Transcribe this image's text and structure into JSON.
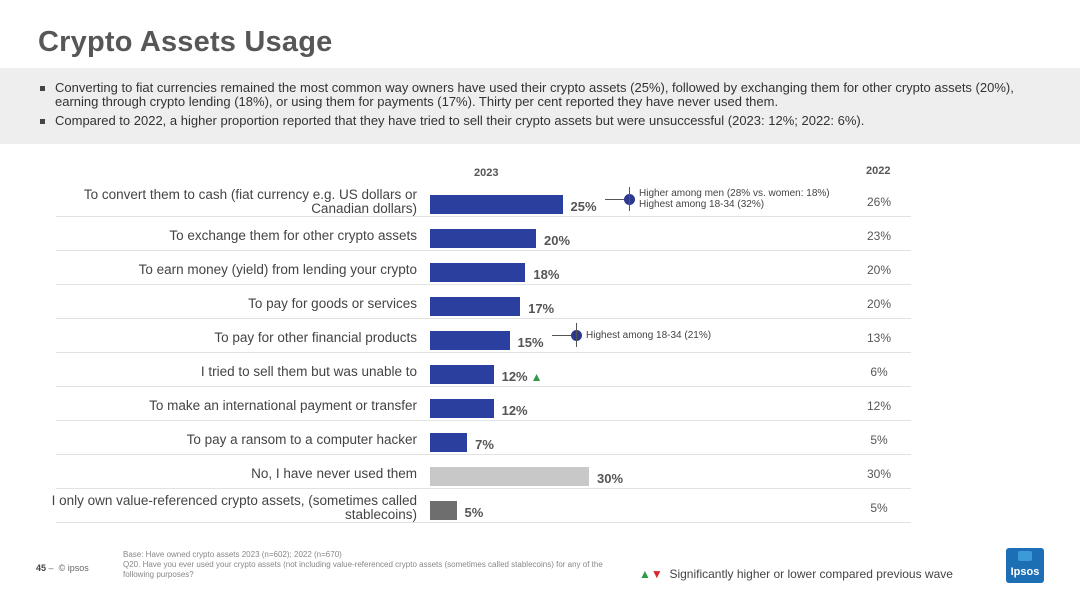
{
  "title": "Crypto Assets Usage",
  "summary": [
    "Converting to fiat currencies remained the most common way owners have used their crypto assets (25%), followed by exchanging them for other crypto assets (20%), earning through crypto lending (18%), or using them for payments (17%). Thirty per cent reported they have never used them.",
    "Compared to 2022, a higher proportion reported that they have tried to sell their crypto assets but were unsuccessful (2023: 12%; 2022: 6%)."
  ],
  "chart_data": {
    "type": "bar",
    "orientation": "horizontal",
    "column_headers": {
      "current": "2023",
      "previous": "2022"
    },
    "categories": [
      "To convert them to cash (fiat currency e.g. US dollars or Canadian dollars)",
      "To exchange them for other crypto assets",
      "To earn money (yield) from lending your crypto",
      "To pay for goods or services",
      "To pay for other financial products",
      "I tried to sell them but was unable to",
      "To make an international payment or transfer",
      "To pay a ransom to a computer hacker",
      "No, I have never used them",
      "I only own value-referenced crypto assets, (sometimes called stablecoins)"
    ],
    "series": [
      {
        "name": "2023",
        "values": [
          25,
          20,
          18,
          17,
          15,
          12,
          12,
          7,
          30,
          5
        ],
        "labels": [
          "25%",
          "20%",
          "18%",
          "17%",
          "15%",
          "12%",
          "12%",
          "7%",
          "30%",
          "5%"
        ]
      },
      {
        "name": "2022",
        "values": [
          26,
          23,
          20,
          20,
          13,
          6,
          12,
          5,
          30,
          5
        ],
        "labels": [
          "26%",
          "23%",
          "20%",
          "20%",
          "13%",
          "6%",
          "12%",
          "5%",
          "30%",
          "5%"
        ]
      }
    ],
    "bar_colors": [
      "#2b3f9e",
      "#2b3f9e",
      "#2b3f9e",
      "#2b3f9e",
      "#2b3f9e",
      "#2b3f9e",
      "#2b3f9e",
      "#2b3f9e",
      "#c8c8c8",
      "#6e6e6e"
    ],
    "significant_higher_index": 5,
    "callouts": [
      {
        "category_index": 0,
        "lines": [
          "Higher among men (28% vs. women: 18%)",
          "Highest among 18-34 (32%)"
        ]
      },
      {
        "category_index": 4,
        "lines": [
          "Highest among 18-34 (21%)"
        ]
      }
    ]
  },
  "footer": {
    "page": "45",
    "separator": "–",
    "copyright": "© ipsos",
    "base": "Base: Have owned crypto assets 2023 (n=602); 2022 (n=670)",
    "question": "Q20. Have you ever used your crypto assets (not including value-referenced crypto assets (sometimes called stablecoins) for any of the following purposes?",
    "legend_note": "Significantly higher or lower compared previous wave",
    "logo_text": "Ipsos"
  },
  "colors": {
    "accent": "#2b3f9e",
    "up": "#2e9a4a",
    "down": "#d9262c"
  }
}
